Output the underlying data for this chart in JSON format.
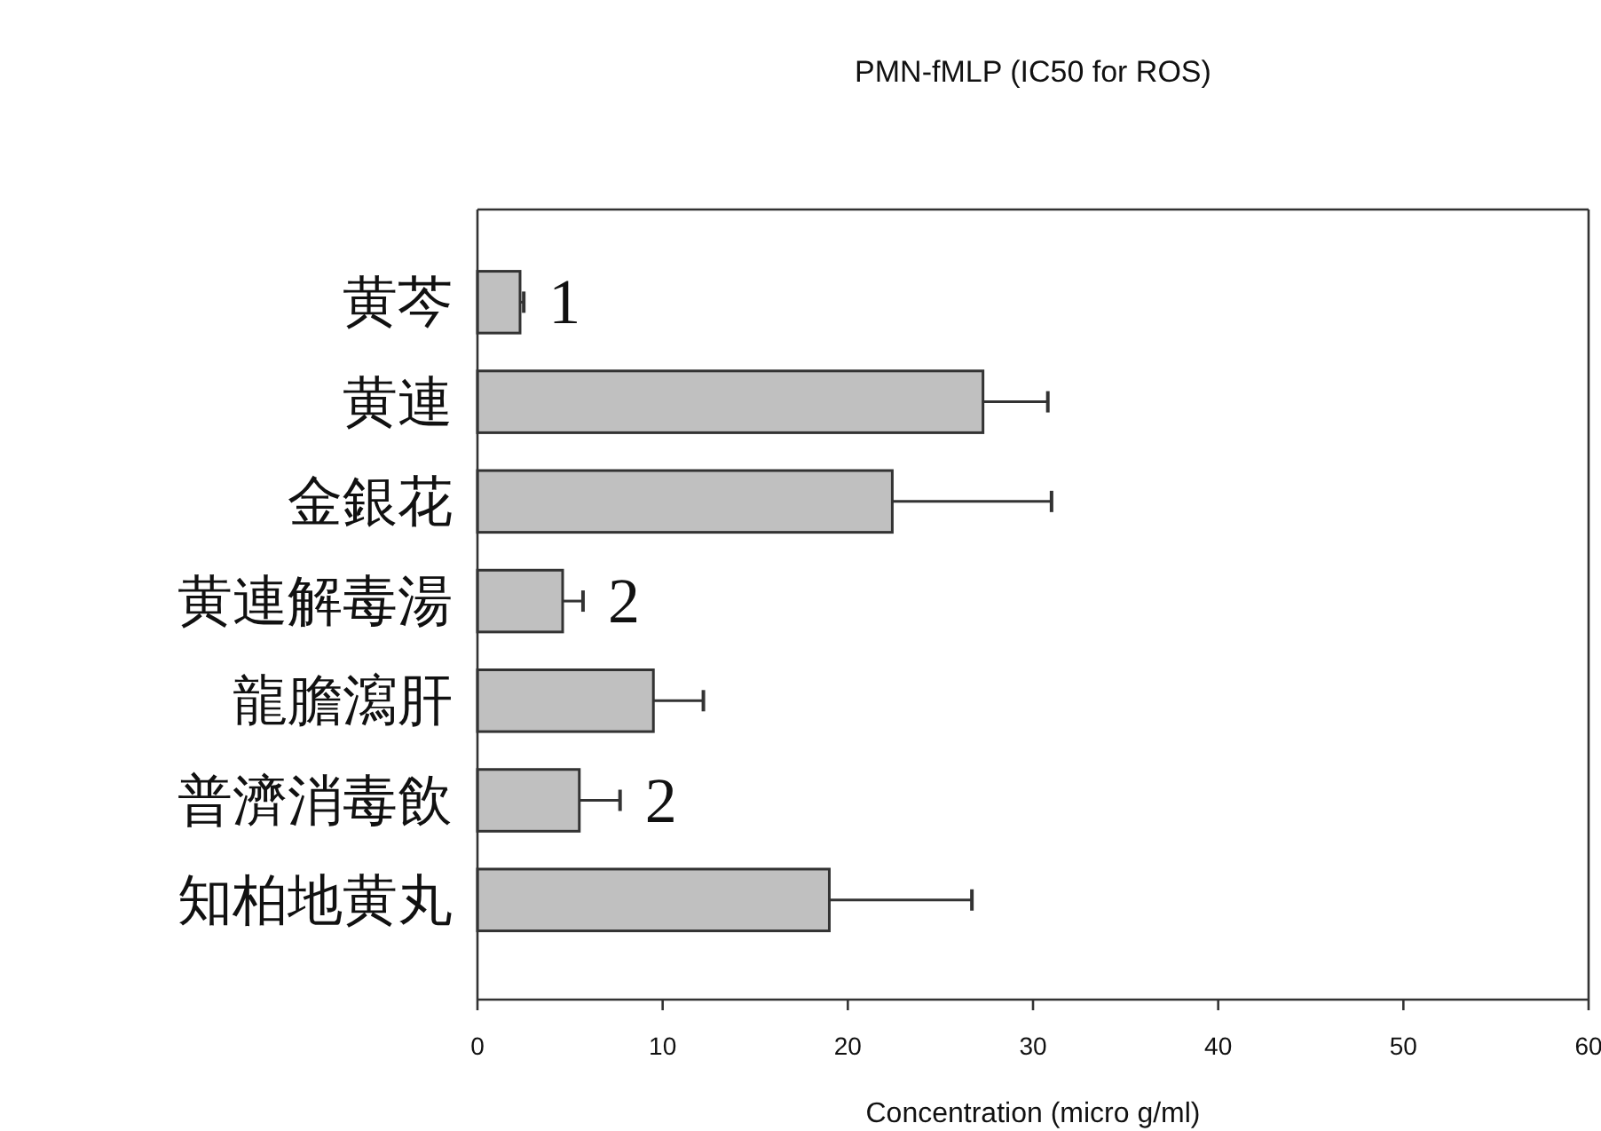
{
  "chart_data": {
    "type": "bar",
    "orientation": "horizontal",
    "title": "PMN-fMLP (IC50 for ROS)",
    "xlabel": "Concentration (micro g/ml)",
    "categories": [
      "黄芩",
      "黄連",
      "金銀花",
      "黄連解毒湯",
      "龍膽瀉肝",
      "普濟消毒飲",
      "知柏地黄丸"
    ],
    "values": [
      2.3,
      27.3,
      22.4,
      4.6,
      9.5,
      5.5,
      19.0
    ],
    "errors": [
      [
        2.3,
        2.5
      ],
      [
        27.3,
        30.8
      ],
      [
        22.4,
        31.0
      ],
      [
        4.6,
        5.7
      ],
      [
        9.5,
        12.2
      ],
      [
        5.5,
        7.7
      ],
      [
        19.0,
        26.7
      ]
    ],
    "color": "#c0c0c0",
    "xlim": [
      0,
      60
    ],
    "xticks": [
      0,
      10,
      20,
      30,
      40,
      50,
      60
    ],
    "annotations": [
      {
        "text": "1",
        "x": 2.5,
        "y": "黄芩"
      },
      {
        "text": "2",
        "x": 5.7,
        "y": "黄連解毒湯"
      },
      {
        "text": "2",
        "x": 7.7,
        "y": "普濟消毒飲"
      }
    ]
  }
}
